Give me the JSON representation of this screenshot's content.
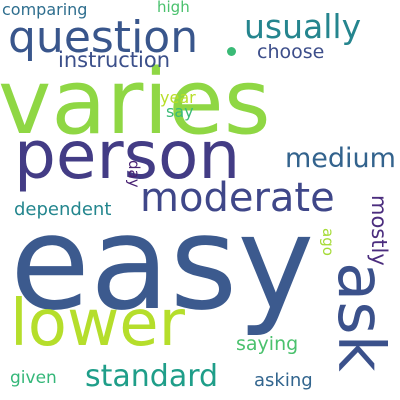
{
  "words": {
    "easy": {
      "text": "easy",
      "color": "#3c5a8e"
    },
    "varies": {
      "text": "varies",
      "color": "#8fd744"
    },
    "person": {
      "text": "person",
      "color": "#433c85"
    },
    "lower": {
      "text": "lower",
      "color": "#b5de2b"
    },
    "ask": {
      "text": "ask",
      "color": "#3b518b"
    },
    "question": {
      "text": "question",
      "color": "#39568c"
    },
    "moderate": {
      "text": "moderate",
      "color": "#3f4789"
    },
    "usually": {
      "text": "usually",
      "color": "#25858e"
    },
    "standard": {
      "text": "standard",
      "color": "#1f9e89"
    },
    "medium": {
      "text": "medium",
      "color": "#33638d"
    },
    "instruction": {
      "text": "instruction",
      "color": "#3b4f8a"
    },
    "choose": {
      "text": "choose",
      "color": "#3d4e8a"
    },
    "dependent": {
      "text": "dependent",
      "color": "#24868e"
    },
    "mostly": {
      "text": "mostly",
      "color": "#4b2d7e"
    },
    "saying": {
      "text": "saying",
      "color": "#4ac16d"
    },
    "comparing": {
      "text": "comparing",
      "color": "#2e6e8e"
    },
    "asking": {
      "text": "asking",
      "color": "#32658e"
    },
    "given": {
      "text": "given",
      "color": "#35b779"
    },
    "year": {
      "text": "year",
      "color": "#b8de29"
    },
    "say": {
      "text": "say",
      "color": "#3aba76"
    },
    "day": {
      "text": "day",
      "color": "#482173"
    },
    "high": {
      "text": "high",
      "color": "#4ac16d"
    },
    "ago": {
      "text": "ago",
      "color": "#a5db36"
    }
  },
  "accent_dot_color": "#3aba76"
}
